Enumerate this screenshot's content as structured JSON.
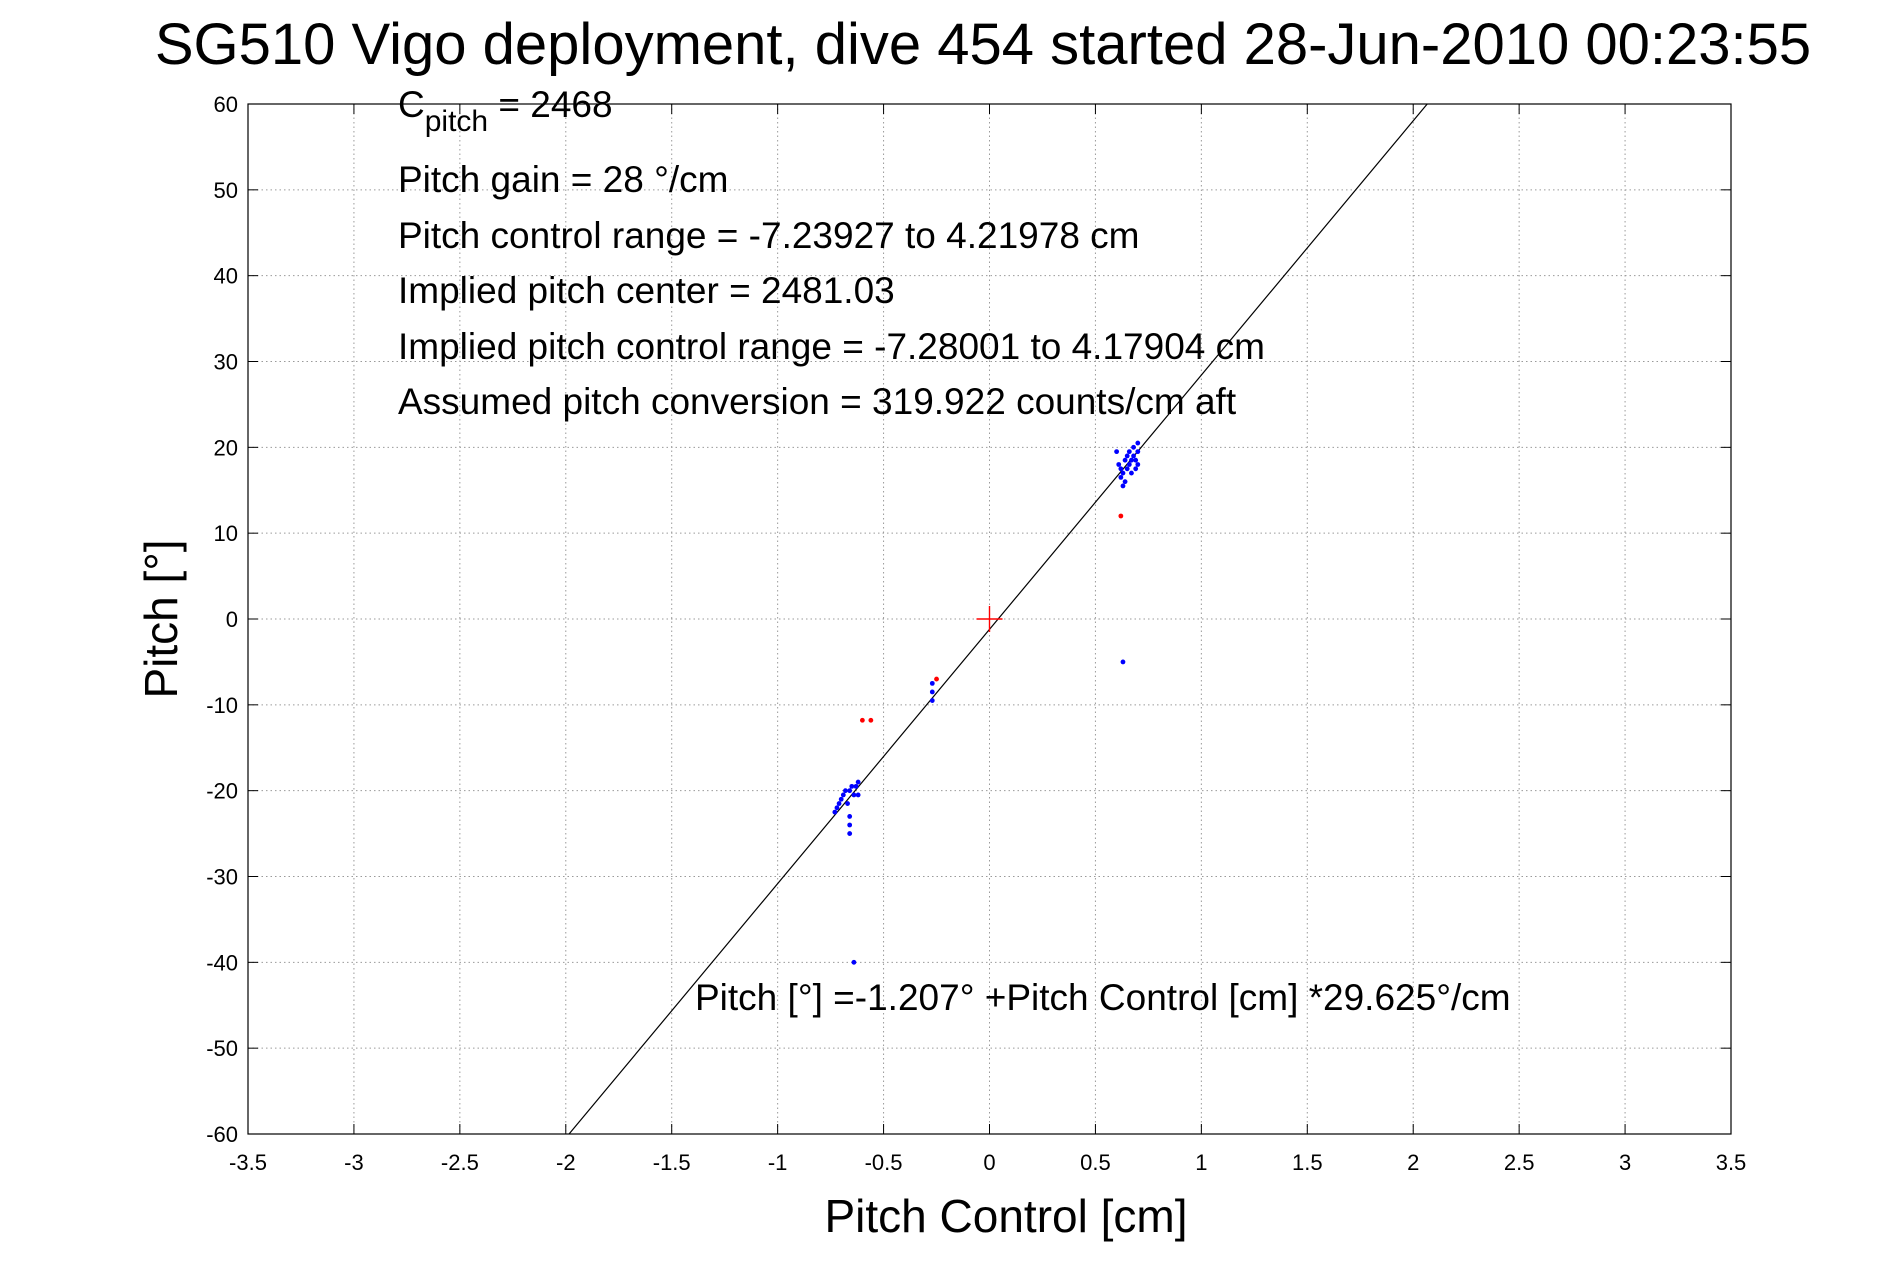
{
  "chart_data": {
    "type": "scatter",
    "title": "SG510 Vigo deployment, dive 454 started 28-Jun-2010 00:23:55",
    "xlabel": "Pitch Control [cm]",
    "ylabel": "Pitch [°]",
    "xlim": [
      -3.5,
      3.5
    ],
    "ylim": [
      -60,
      60
    ],
    "xticks": [
      -3.5,
      -3,
      -2.5,
      -2,
      -1.5,
      -1,
      -0.5,
      0,
      0.5,
      1,
      1.5,
      2,
      2.5,
      3,
      3.5
    ],
    "xtick_labels": [
      "-3.5",
      "-3",
      "-2.5",
      "-2",
      "-1.5",
      "-1",
      "-0.5",
      "0",
      "0.5",
      "1",
      "1.5",
      "2",
      "2.5",
      "3",
      "3.5"
    ],
    "yticks": [
      -60,
      -50,
      -40,
      -30,
      -20,
      -10,
      0,
      10,
      20,
      30,
      40,
      50,
      60
    ],
    "ytick_labels": [
      "-60",
      "-50",
      "-40",
      "-30",
      "-20",
      "-10",
      "0",
      "10",
      "20",
      "30",
      "40",
      "50",
      "60"
    ],
    "grid": true,
    "annotations": {
      "c_pitch_main": "C",
      "c_pitch_sub": "pitch",
      "c_pitch_value": " = 2468",
      "lines": [
        "Pitch gain = 28 °/cm",
        "Pitch control range = -7.23927 to 4.21978 cm",
        "Implied pitch center = 2481.03",
        "Implied pitch control range = -7.28001 to 4.17904 cm",
        "Assumed pitch conversion = 319.922 counts/cm aft"
      ],
      "fit_equation": "Pitch [°] =-1.207° +Pitch Control [cm] *29.625°/cm"
    },
    "fit_line": {
      "intercept": -1.207,
      "slope": 29.625,
      "color": "#000000"
    },
    "center_marker": {
      "x": 0,
      "y": 0,
      "color": "#ff0000"
    },
    "series": [
      {
        "color": "#0000ff",
        "points": [
          [
            0.6,
            19.5
          ],
          [
            0.61,
            18.0
          ],
          [
            0.62,
            17.5
          ],
          [
            0.62,
            16.5
          ],
          [
            0.63,
            15.5
          ],
          [
            0.63,
            17.0
          ],
          [
            0.64,
            18.5
          ],
          [
            0.64,
            16.0
          ],
          [
            0.65,
            19.0
          ],
          [
            0.65,
            17.5
          ],
          [
            0.66,
            18.0
          ],
          [
            0.66,
            19.5
          ],
          [
            0.67,
            18.5
          ],
          [
            0.67,
            17.0
          ],
          [
            0.68,
            19.0
          ],
          [
            0.68,
            20.0
          ],
          [
            0.69,
            18.5
          ],
          [
            0.7,
            20.5
          ],
          [
            0.7,
            19.5
          ],
          [
            0.7,
            18.0
          ],
          [
            0.69,
            17.5
          ],
          [
            0.63,
            -5.0
          ],
          [
            -0.27,
            -9.5
          ],
          [
            -0.27,
            -8.5
          ],
          [
            -0.27,
            -7.5
          ],
          [
            -0.73,
            -22.5
          ],
          [
            -0.72,
            -22.0
          ],
          [
            -0.71,
            -21.5
          ],
          [
            -0.7,
            -21.0
          ],
          [
            -0.69,
            -20.5
          ],
          [
            -0.68,
            -20.0
          ],
          [
            -0.67,
            -21.5
          ],
          [
            -0.66,
            -20.0
          ],
          [
            -0.65,
            -19.5
          ],
          [
            -0.64,
            -20.5
          ],
          [
            -0.63,
            -19.5
          ],
          [
            -0.62,
            -19.0
          ],
          [
            -0.62,
            -20.5
          ],
          [
            -0.66,
            -23.0
          ],
          [
            -0.66,
            -24.0
          ],
          [
            -0.66,
            -25.0
          ],
          [
            -0.64,
            -40.0
          ]
        ]
      },
      {
        "color": "#ff0000",
        "points": [
          [
            0.62,
            12.0
          ],
          [
            -0.25,
            -7.0
          ],
          [
            -0.6,
            -11.8
          ],
          [
            -0.56,
            -11.8
          ]
        ]
      }
    ]
  }
}
